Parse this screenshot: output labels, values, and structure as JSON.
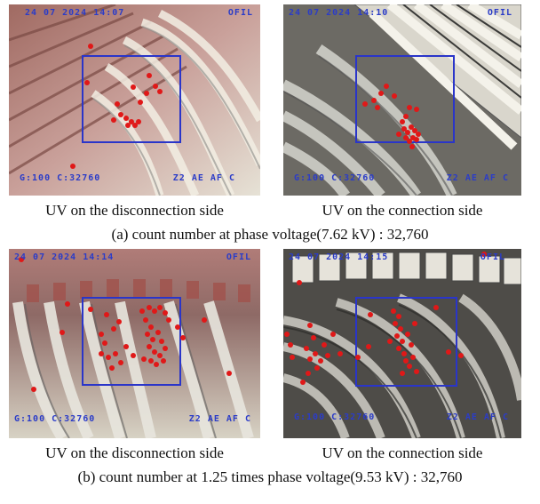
{
  "figures": [
    {
      "caption": "(a) count number at phase voltage(7.62 kV) : 32,760",
      "panels": [
        {
          "label": "UV on the disconnection side",
          "overlay_top": "24 07 2024 14:07",
          "overlay_mode": "OFIL",
          "overlay_bottom_left": "G:100 C:32760",
          "overlay_bottom_right": "Z2 AE AF C"
        },
        {
          "label": "UV on the connection side",
          "overlay_top": "24 07 2024 14:10",
          "overlay_mode": "OFIL",
          "overlay_bottom_left": "G:100 C:32760",
          "overlay_bottom_right": "Z2 AE AF C"
        }
      ]
    },
    {
      "caption": "(b) count number at 1.25 times phase voltage(9.53 kV) : 32,760",
      "panels": [
        {
          "label": "UV on the disconnection side",
          "overlay_top": "24 07 2024 14:14",
          "overlay_mode": "OFIL",
          "overlay_bottom_left": "G:100 C:32760",
          "overlay_bottom_right": "Z2 AE AF C"
        },
        {
          "label": "UV on the connection side",
          "overlay_top": "24 07 2024 14:15",
          "overlay_mode": "OFIL",
          "overlay_bottom_left": "G:100 C:32760",
          "overlay_bottom_right": "Z2 AE AF C"
        }
      ]
    }
  ],
  "colors": {
    "overlay_text": "#2b3cc8",
    "roi_box": "#2a35c9",
    "uv_dot": "#e01818"
  }
}
